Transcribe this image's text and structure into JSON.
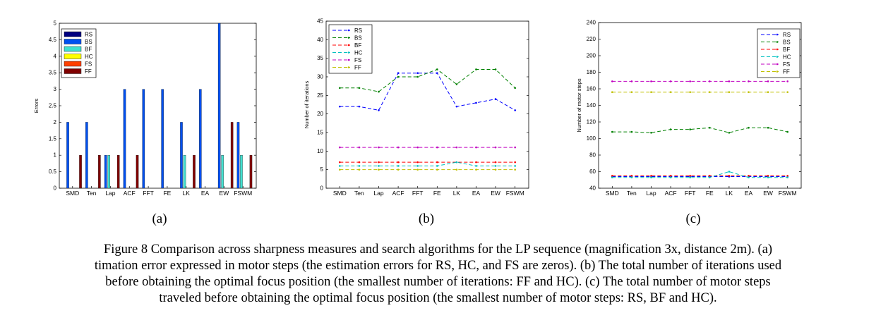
{
  "panels": [
    {
      "label": "(a)"
    },
    {
      "label": "(b)"
    },
    {
      "label": "(c)"
    }
  ],
  "caption_lines": [
    "Figure 8 Comparison across sharpness measures and search algorithms for the LP sequence (magnification 3x, distance 2m).  (a)",
    "timation error expressed in motor steps (the estimation errors for RS, HC, and FS are zeros).  (b) The total number of iterations used",
    "before obtaining the optimal focus position (the smallest number of iterations: FF and HC).  (c) The total number of motor steps",
    "traveled before obtaining the optimal focus position (the smallest number of motor steps: RS, BF and HC)."
  ],
  "chart_data": [
    {
      "type": "bar",
      "ylabel": "Errors",
      "xlabel": "",
      "ylim": [
        0,
        5
      ],
      "yticks": [
        "0",
        "0.5",
        "1",
        "1.5",
        "2",
        "2.5",
        "3",
        "3.5",
        "4",
        "4.5",
        "5"
      ],
      "categories": [
        "SMD",
        "Ten",
        "Lap",
        "ACF",
        "FFT",
        "FE",
        "LK",
        "EA",
        "EW",
        "FSWM"
      ],
      "legend_position": "top-left",
      "series": [
        {
          "name": "RS",
          "color": "#000080",
          "values": [
            0,
            0,
            0,
            0,
            0,
            0,
            0,
            0,
            0,
            0
          ]
        },
        {
          "name": "BS",
          "color": "#0050f0",
          "values": [
            2,
            2,
            1,
            3,
            3,
            3,
            2,
            3,
            5,
            2
          ]
        },
        {
          "name": "BF",
          "color": "#40e0d0",
          "values": [
            0,
            0,
            1,
            0,
            0,
            0,
            1,
            0,
            1,
            1
          ]
        },
        {
          "name": "HC",
          "color": "#ffff00",
          "values": [
            0,
            0,
            0,
            0,
            0,
            0,
            0,
            0,
            0,
            0
          ]
        },
        {
          "name": "FS",
          "color": "#ff4000",
          "values": [
            0,
            0,
            0,
            0,
            0,
            0,
            0,
            0,
            0,
            0
          ]
        },
        {
          "name": "FF",
          "color": "#800000",
          "values": [
            1,
            1,
            1,
            1,
            0,
            0,
            1,
            0,
            2,
            1
          ]
        }
      ]
    },
    {
      "type": "line",
      "ylabel": "Number of iterations",
      "xlabel": "",
      "ylim": [
        0,
        45
      ],
      "yticks": [
        "0",
        "5",
        "10",
        "15",
        "20",
        "25",
        "30",
        "35",
        "40",
        "45"
      ],
      "categories": [
        "SMD",
        "Ten",
        "Lap",
        "ACF",
        "FFT",
        "FE",
        "LK",
        "EA",
        "EW",
        "FSWM"
      ],
      "legend_position": "top-left",
      "series": [
        {
          "name": "RS",
          "color": "#0000ff",
          "values": [
            22,
            22,
            21,
            31,
            31,
            31,
            22,
            23,
            24,
            21
          ]
        },
        {
          "name": "BS",
          "color": "#008000",
          "values": [
            27,
            27,
            26,
            30,
            30,
            32,
            28,
            32,
            32,
            27
          ]
        },
        {
          "name": "BF",
          "color": "#ff0000",
          "values": [
            7,
            7,
            7,
            7,
            7,
            7,
            7,
            7,
            7,
            7
          ]
        },
        {
          "name": "HC",
          "color": "#00c0c0",
          "values": [
            6,
            6,
            6,
            6,
            6,
            6,
            7,
            6,
            6,
            6
          ]
        },
        {
          "name": "FS",
          "color": "#c000c0",
          "values": [
            11,
            11,
            11,
            11,
            11,
            11,
            11,
            11,
            11,
            11
          ]
        },
        {
          "name": "FF",
          "color": "#c0c000",
          "values": [
            5,
            5,
            5,
            5,
            5,
            5,
            5,
            5,
            5,
            5
          ]
        }
      ]
    },
    {
      "type": "line",
      "ylabel": "Number of motor steps",
      "xlabel": "",
      "ylim": [
        40,
        240
      ],
      "yticks": [
        "40",
        "60",
        "80",
        "100",
        "120",
        "140",
        "160",
        "180",
        "200",
        "220",
        "240"
      ],
      "categories": [
        "SMD",
        "Ten",
        "Lap",
        "ACF",
        "FFT",
        "FE",
        "LK",
        "EA",
        "EW",
        "FSWM"
      ],
      "legend_position": "top-right",
      "series": [
        {
          "name": "RS",
          "color": "#0000ff",
          "values": [
            54,
            54,
            54,
            54,
            54,
            54,
            54,
            54,
            54,
            54
          ]
        },
        {
          "name": "BS",
          "color": "#008000",
          "values": [
            108,
            108,
            107,
            111,
            111,
            113,
            107,
            113,
            113,
            108
          ]
        },
        {
          "name": "BF",
          "color": "#ff0000",
          "values": [
            55,
            55,
            55,
            55,
            55,
            55,
            55,
            55,
            55,
            55
          ]
        },
        {
          "name": "HC",
          "color": "#00c0c0",
          "values": [
            53,
            53,
            53,
            53,
            53,
            53,
            60,
            53,
            53,
            53
          ]
        },
        {
          "name": "FS",
          "color": "#c000c0",
          "values": [
            169,
            169,
            169,
            169,
            169,
            169,
            169,
            169,
            169,
            169
          ]
        },
        {
          "name": "FF",
          "color": "#c0c000",
          "values": [
            156,
            156,
            156,
            156,
            156,
            156,
            156,
            156,
            156,
            156
          ]
        }
      ]
    }
  ]
}
